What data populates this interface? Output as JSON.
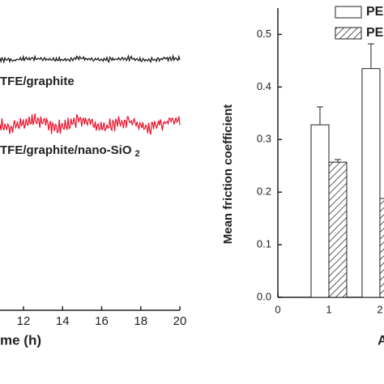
{
  "chart_data": [
    {
      "type": "line",
      "xlabel": "me (h)",
      "annotations": [
        "TFE/graphite",
        "TFE/graphite/nano-SiO",
        "2"
      ],
      "xlim": [
        10.8,
        20
      ],
      "xticks": [
        12,
        14,
        16,
        18,
        20
      ]
    },
    {
      "type": "bar",
      "ylabel": "Mean friction coefficient",
      "xlabel": "A",
      "x": [
        1,
        2
      ],
      "xlim": [
        0,
        2.08
      ],
      "xticks": [
        0,
        1,
        2
      ],
      "ylim": [
        0,
        0.55
      ],
      "yticks": [
        {
          "value": 0,
          "label": "0.0"
        },
        0.1,
        0.2,
        0.3,
        0.4,
        0.5
      ],
      "legend": "upper right",
      "series": [
        {
          "name": "PE",
          "color": "#ffffff",
          "pattern": "none",
          "values": [
            0.328,
            0.435
          ],
          "errors": [
            0.034,
            0.047
          ]
        },
        {
          "name": "PE",
          "color": "#ffffff",
          "pattern": "hatch",
          "values": [
            0.257,
            0.188
          ],
          "errors": [
            0.005,
            null
          ]
        }
      ]
    }
  ]
}
